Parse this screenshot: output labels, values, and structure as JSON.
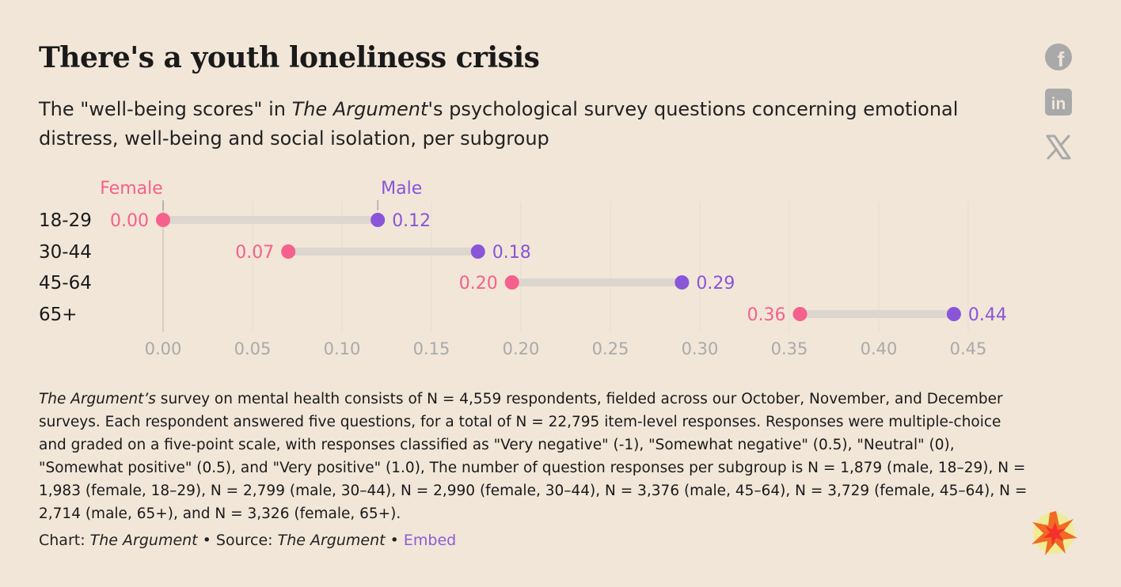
{
  "header": {
    "title": "There's a youth loneliness crisis",
    "subtitle_pre": "The \"well-being scores\" in ",
    "subtitle_italic": "The Argument",
    "subtitle_post": "'s psychological survey questions concerning emotional distress, well-being and social isolation, per subgroup"
  },
  "share": {
    "icons": [
      "facebook-icon",
      "linkedin-icon",
      "x-icon"
    ],
    "facebook_glyph": "f",
    "linkedin_glyph": "in",
    "x_glyph": "𝕏"
  },
  "colors": {
    "background": "#f1e6d8",
    "female": "#f5608c",
    "male": "#8a55d8",
    "connector": "#ddd6ce",
    "axis_text": "#aaaaaa",
    "gridline": "#e6ddd0",
    "icon": "#a9a9a9"
  },
  "chart_data": {
    "type": "dumbbell",
    "legend": {
      "female": "Female",
      "male": "Male"
    },
    "categories": [
      "18-29",
      "30-44",
      "45-64",
      "65+"
    ],
    "series": [
      {
        "name": "Female",
        "values": [
          0.0,
          0.07,
          0.195,
          0.356
        ],
        "labels": [
          "0.00",
          "0.07",
          "0.20",
          "0.36"
        ]
      },
      {
        "name": "Male",
        "values": [
          0.12,
          0.176,
          0.29,
          0.442
        ],
        "labels": [
          "0.12",
          "0.18",
          "0.29",
          "0.44"
        ]
      }
    ],
    "xlim": [
      0,
      0.45
    ],
    "xticks": [
      0,
      0.05,
      0.1,
      0.15,
      0.2,
      0.25,
      0.3,
      0.35,
      0.4,
      0.45
    ],
    "xtick_labels": [
      "0.00",
      "0.05",
      "0.10",
      "0.15",
      "0.20",
      "0.25",
      "0.30",
      "0.35",
      "0.40",
      "0.45"
    ],
    "grid": true
  },
  "notes": {
    "italic_lead": "The Argument’s",
    "text": " survey on mental health consists of N = 4,559 respondents, fielded across our October, November, and December surveys. Each respondent answered five questions, for a total of N = 22,795 item-level responses. Responses were multiple-choice and graded on a five-point scale, with responses classified as \"Very negative\" (-1), \"Somewhat negative\" (0.5), \"Neutral\" (0), \"Somewhat positive\" (0.5), and \"Very positive\" (1.0), The number of question responses per subgroup is N = 1,879 (male, 18–29), N = 1,983 (female, 18–29), N = 2,799 (male, 30–44), N = 2,990 (female, 30–44), N = 3,376 (male, 45–64), N = 3,729 (female, 45–64), N = 2,714 (male, 65+), and N = 3,326 (female, 65+)."
  },
  "credit": {
    "chart_label": "Chart: ",
    "chart_name": "The Argument",
    "sep1": " • Source: ",
    "source_name": "The Argument",
    "sep2": " • ",
    "embed": "Embed"
  }
}
